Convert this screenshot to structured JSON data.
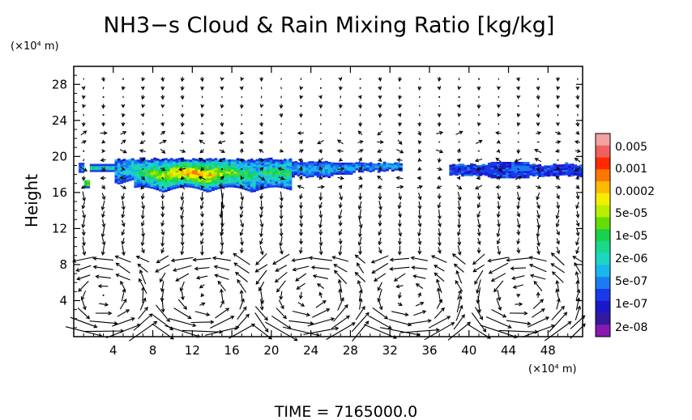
{
  "chart_data": {
    "type": "heatmap",
    "title": "NH3−s Cloud & Rain Mixing Ratio [kg/kg]",
    "ylabel": "Height",
    "y_unit": "(×10⁴ m)",
    "x_unit": "(×10⁴ m)",
    "footer": "TIME = 7165000.0",
    "xlim": [
      0,
      51.5
    ],
    "ylim": [
      0,
      30
    ],
    "xticks": [
      4,
      8,
      12,
      16,
      20,
      24,
      28,
      32,
      36,
      40,
      44,
      48
    ],
    "yticks": [
      4,
      8,
      12,
      16,
      20,
      24,
      28
    ],
    "colorbar": {
      "labels": [
        "0.005",
        "0.001",
        "0.0002",
        "5e-05",
        "1e-05",
        "2e-06",
        "5e-07",
        "1e-07",
        "2e-08"
      ],
      "colors": [
        "#f4a0a0",
        "#f06060",
        "#ff2a00",
        "#ff7700",
        "#ffbb00",
        "#f5ee00",
        "#b8ee00",
        "#66dd00",
        "#19d24a",
        "#1ad88a",
        "#1ad6c4",
        "#1ab6ee",
        "#1a7cf0",
        "#1a3aea",
        "#1a18c8",
        "#3418a0",
        "#8818b0"
      ]
    },
    "cloud_layers": [
      {
        "x_start": 0.5,
        "x_end": 33.0,
        "y_bottom": 16.0,
        "y_top": 19.7,
        "peak": "0.0002"
      },
      {
        "x_start": 38.0,
        "x_end": 51.5,
        "y_bottom": 17.6,
        "y_top": 19.2,
        "peak": "1e-07"
      }
    ],
    "vector_field": {
      "description": "wind vectors",
      "circulation_cells_x": [
        3,
        13,
        24,
        34,
        45
      ]
    }
  }
}
